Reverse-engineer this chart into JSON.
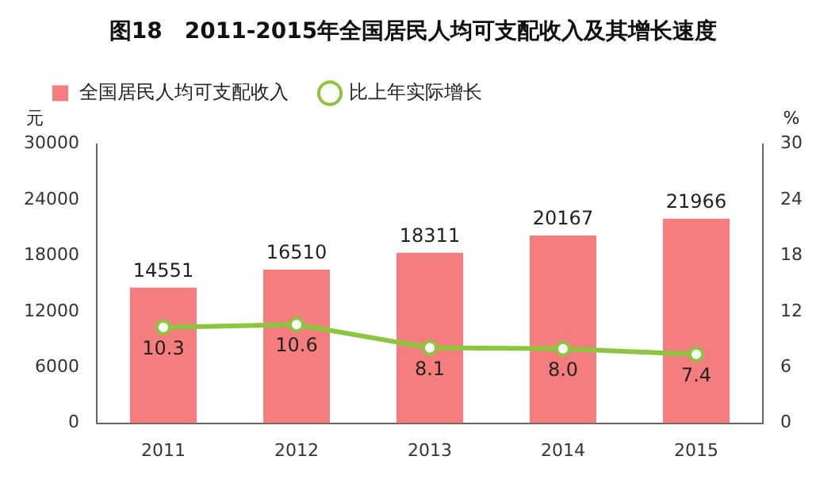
{
  "chart_data": {
    "type": "bar",
    "title": "图18　2011-2015年全国居民人均可支配收入及其增长速度",
    "categories": [
      "2011",
      "2012",
      "2013",
      "2014",
      "2015"
    ],
    "ylabel": "元",
    "y2label": "%",
    "series": [
      {
        "name": "全国居民人均可支配收入",
        "color": "#f47e7e",
        "values": [
          14551,
          16510,
          18311,
          20167,
          21966
        ],
        "value_labels": [
          "14551",
          "16510",
          "18311",
          "20167",
          "21966"
        ]
      },
      {
        "name": "比上年实际增长",
        "type": "line",
        "axis": "y2",
        "color": "#8cc63e",
        "values": [
          10.3,
          10.6,
          8.1,
          8.0,
          7.4
        ],
        "value_labels": [
          "10.3",
          "10.6",
          "8.1",
          "8.0",
          "7.4"
        ]
      }
    ],
    "ylim": [
      0,
      30000
    ],
    "yticks": [
      0,
      6000,
      12000,
      18000,
      24000,
      30000
    ],
    "y2lim": [
      0,
      30
    ],
    "y2ticks": [
      0,
      6,
      12,
      18,
      24,
      30
    ],
    "legend": "top left",
    "marker": "circle",
    "line_style": "solid",
    "grid": false
  }
}
